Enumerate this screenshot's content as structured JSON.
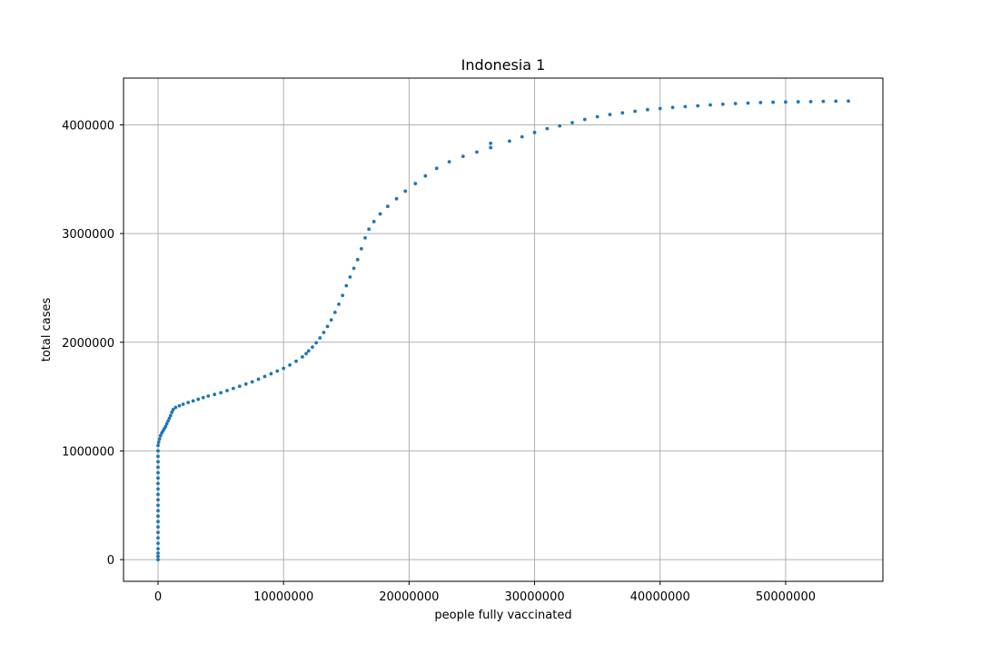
{
  "chart_data": {
    "type": "scatter",
    "title": "Indonesia 1",
    "xlabel": "people fully vaccinated",
    "ylabel": "total cases",
    "xlim": [
      -2750000,
      57750000
    ],
    "ylim": [
      -200000,
      4430000
    ],
    "xticks": [
      0,
      10000000,
      20000000,
      30000000,
      40000000,
      50000000
    ],
    "xtick_labels": [
      "0",
      "10000000",
      "20000000",
      "30000000",
      "40000000",
      "50000000"
    ],
    "yticks": [
      0,
      1000000,
      2000000,
      3000000,
      4000000
    ],
    "ytick_labels": [
      "0",
      "1000000",
      "2000000",
      "3000000",
      "4000000"
    ],
    "grid": true,
    "marker_color": "#1f77b4",
    "points": [
      [
        0,
        0
      ],
      [
        0,
        30000
      ],
      [
        0,
        60000
      ],
      [
        0,
        100000
      ],
      [
        0,
        150000
      ],
      [
        0,
        200000
      ],
      [
        0,
        250000
      ],
      [
        0,
        300000
      ],
      [
        0,
        350000
      ],
      [
        0,
        400000
      ],
      [
        0,
        450000
      ],
      [
        0,
        500000
      ],
      [
        0,
        550000
      ],
      [
        0,
        600000
      ],
      [
        0,
        650000
      ],
      [
        0,
        700000
      ],
      [
        0,
        750000
      ],
      [
        0,
        800000
      ],
      [
        0,
        850000
      ],
      [
        0,
        900000
      ],
      [
        0,
        950000
      ],
      [
        0,
        1000000
      ],
      [
        0,
        1050000
      ],
      [
        50000,
        1080000
      ],
      [
        120000,
        1110000
      ],
      [
        200000,
        1140000
      ],
      [
        300000,
        1165000
      ],
      [
        400000,
        1185000
      ],
      [
        500000,
        1205000
      ],
      [
        600000,
        1225000
      ],
      [
        700000,
        1250000
      ],
      [
        800000,
        1275000
      ],
      [
        900000,
        1300000
      ],
      [
        1000000,
        1325000
      ],
      [
        1100000,
        1355000
      ],
      [
        1200000,
        1380000
      ],
      [
        1400000,
        1400000
      ],
      [
        1700000,
        1415000
      ],
      [
        2000000,
        1430000
      ],
      [
        2400000,
        1445000
      ],
      [
        2800000,
        1460000
      ],
      [
        3200000,
        1475000
      ],
      [
        3600000,
        1490000
      ],
      [
        4000000,
        1505000
      ],
      [
        4500000,
        1520000
      ],
      [
        5000000,
        1535000
      ],
      [
        5500000,
        1555000
      ],
      [
        6000000,
        1575000
      ],
      [
        6500000,
        1595000
      ],
      [
        7000000,
        1615000
      ],
      [
        7500000,
        1635000
      ],
      [
        8000000,
        1660000
      ],
      [
        8500000,
        1685000
      ],
      [
        9000000,
        1710000
      ],
      [
        9500000,
        1735000
      ],
      [
        10000000,
        1760000
      ],
      [
        10500000,
        1790000
      ],
      [
        11000000,
        1825000
      ],
      [
        11500000,
        1865000
      ],
      [
        11800000,
        1895000
      ],
      [
        12000000,
        1920000
      ],
      [
        12300000,
        1955000
      ],
      [
        12600000,
        1995000
      ],
      [
        12900000,
        2040000
      ],
      [
        13200000,
        2090000
      ],
      [
        13500000,
        2145000
      ],
      [
        13800000,
        2205000
      ],
      [
        14100000,
        2275000
      ],
      [
        14400000,
        2350000
      ],
      [
        14700000,
        2430000
      ],
      [
        15000000,
        2520000
      ],
      [
        15300000,
        2600000
      ],
      [
        15600000,
        2680000
      ],
      [
        15900000,
        2760000
      ],
      [
        16200000,
        2860000
      ],
      [
        16500000,
        2960000
      ],
      [
        16800000,
        3040000
      ],
      [
        17200000,
        3110000
      ],
      [
        17700000,
        3180000
      ],
      [
        18300000,
        3250000
      ],
      [
        19000000,
        3320000
      ],
      [
        19700000,
        3390000
      ],
      [
        20500000,
        3460000
      ],
      [
        21300000,
        3530000
      ],
      [
        22200000,
        3600000
      ],
      [
        23200000,
        3660000
      ],
      [
        24300000,
        3710000
      ],
      [
        25400000,
        3750000
      ],
      [
        26500000,
        3790000
      ],
      [
        26500000,
        3830000
      ],
      [
        28000000,
        3850000
      ],
      [
        29000000,
        3890000
      ],
      [
        30000000,
        3930000
      ],
      [
        31000000,
        3965000
      ],
      [
        32000000,
        3990000
      ],
      [
        33000000,
        4020000
      ],
      [
        34000000,
        4050000
      ],
      [
        35000000,
        4075000
      ],
      [
        36000000,
        4095000
      ],
      [
        37000000,
        4110000
      ],
      [
        38000000,
        4125000
      ],
      [
        39000000,
        4140000
      ],
      [
        40000000,
        4150000
      ],
      [
        41000000,
        4160000
      ],
      [
        42000000,
        4168000
      ],
      [
        43000000,
        4175000
      ],
      [
        44000000,
        4183000
      ],
      [
        45000000,
        4190000
      ],
      [
        46000000,
        4196000
      ],
      [
        47000000,
        4200000
      ],
      [
        48000000,
        4205000
      ],
      [
        49000000,
        4208000
      ],
      [
        50000000,
        4210000
      ],
      [
        51000000,
        4212000
      ],
      [
        52000000,
        4214000
      ],
      [
        53000000,
        4216000
      ],
      [
        54000000,
        4218000
      ],
      [
        55000000,
        4219000
      ]
    ]
  }
}
